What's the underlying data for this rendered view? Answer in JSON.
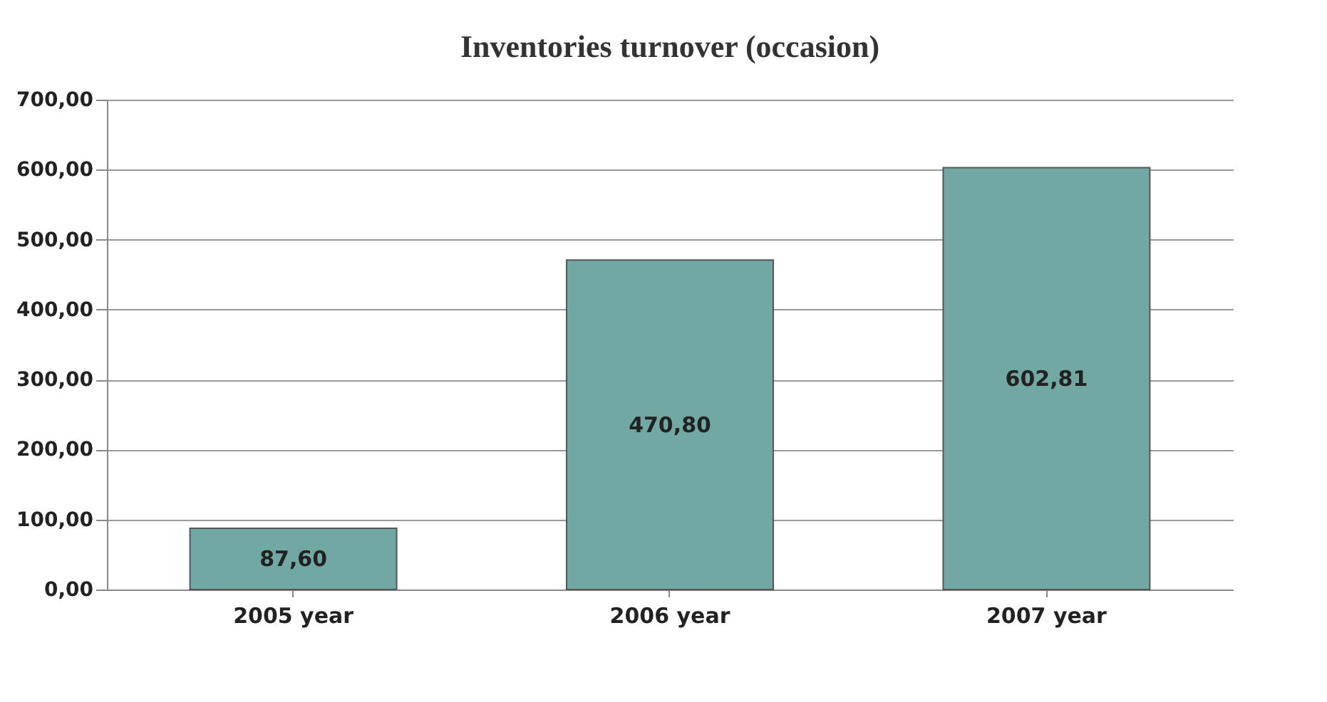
{
  "chart_data": {
    "type": "bar",
    "title": "Inventories turnover (occasion)",
    "categories": [
      "2005 year",
      "2006 year",
      "2007 year"
    ],
    "values": [
      87.6,
      470.8,
      602.81
    ],
    "value_labels": [
      "87,60",
      "470,80",
      "602,81"
    ],
    "color": "#72a8a4",
    "ylim": [
      0,
      700
    ],
    "yticks": [
      {
        "value": 0,
        "label": "0,00"
      },
      {
        "value": 100,
        "label": "100,00"
      },
      {
        "value": 200,
        "label": "200,00"
      },
      {
        "value": 300,
        "label": "300,00"
      },
      {
        "value": 400,
        "label": "400,00"
      },
      {
        "value": 500,
        "label": "500,00"
      },
      {
        "value": 600,
        "label": "600,00"
      },
      {
        "value": 700,
        "label": "700,00"
      }
    ],
    "grid": "y"
  }
}
